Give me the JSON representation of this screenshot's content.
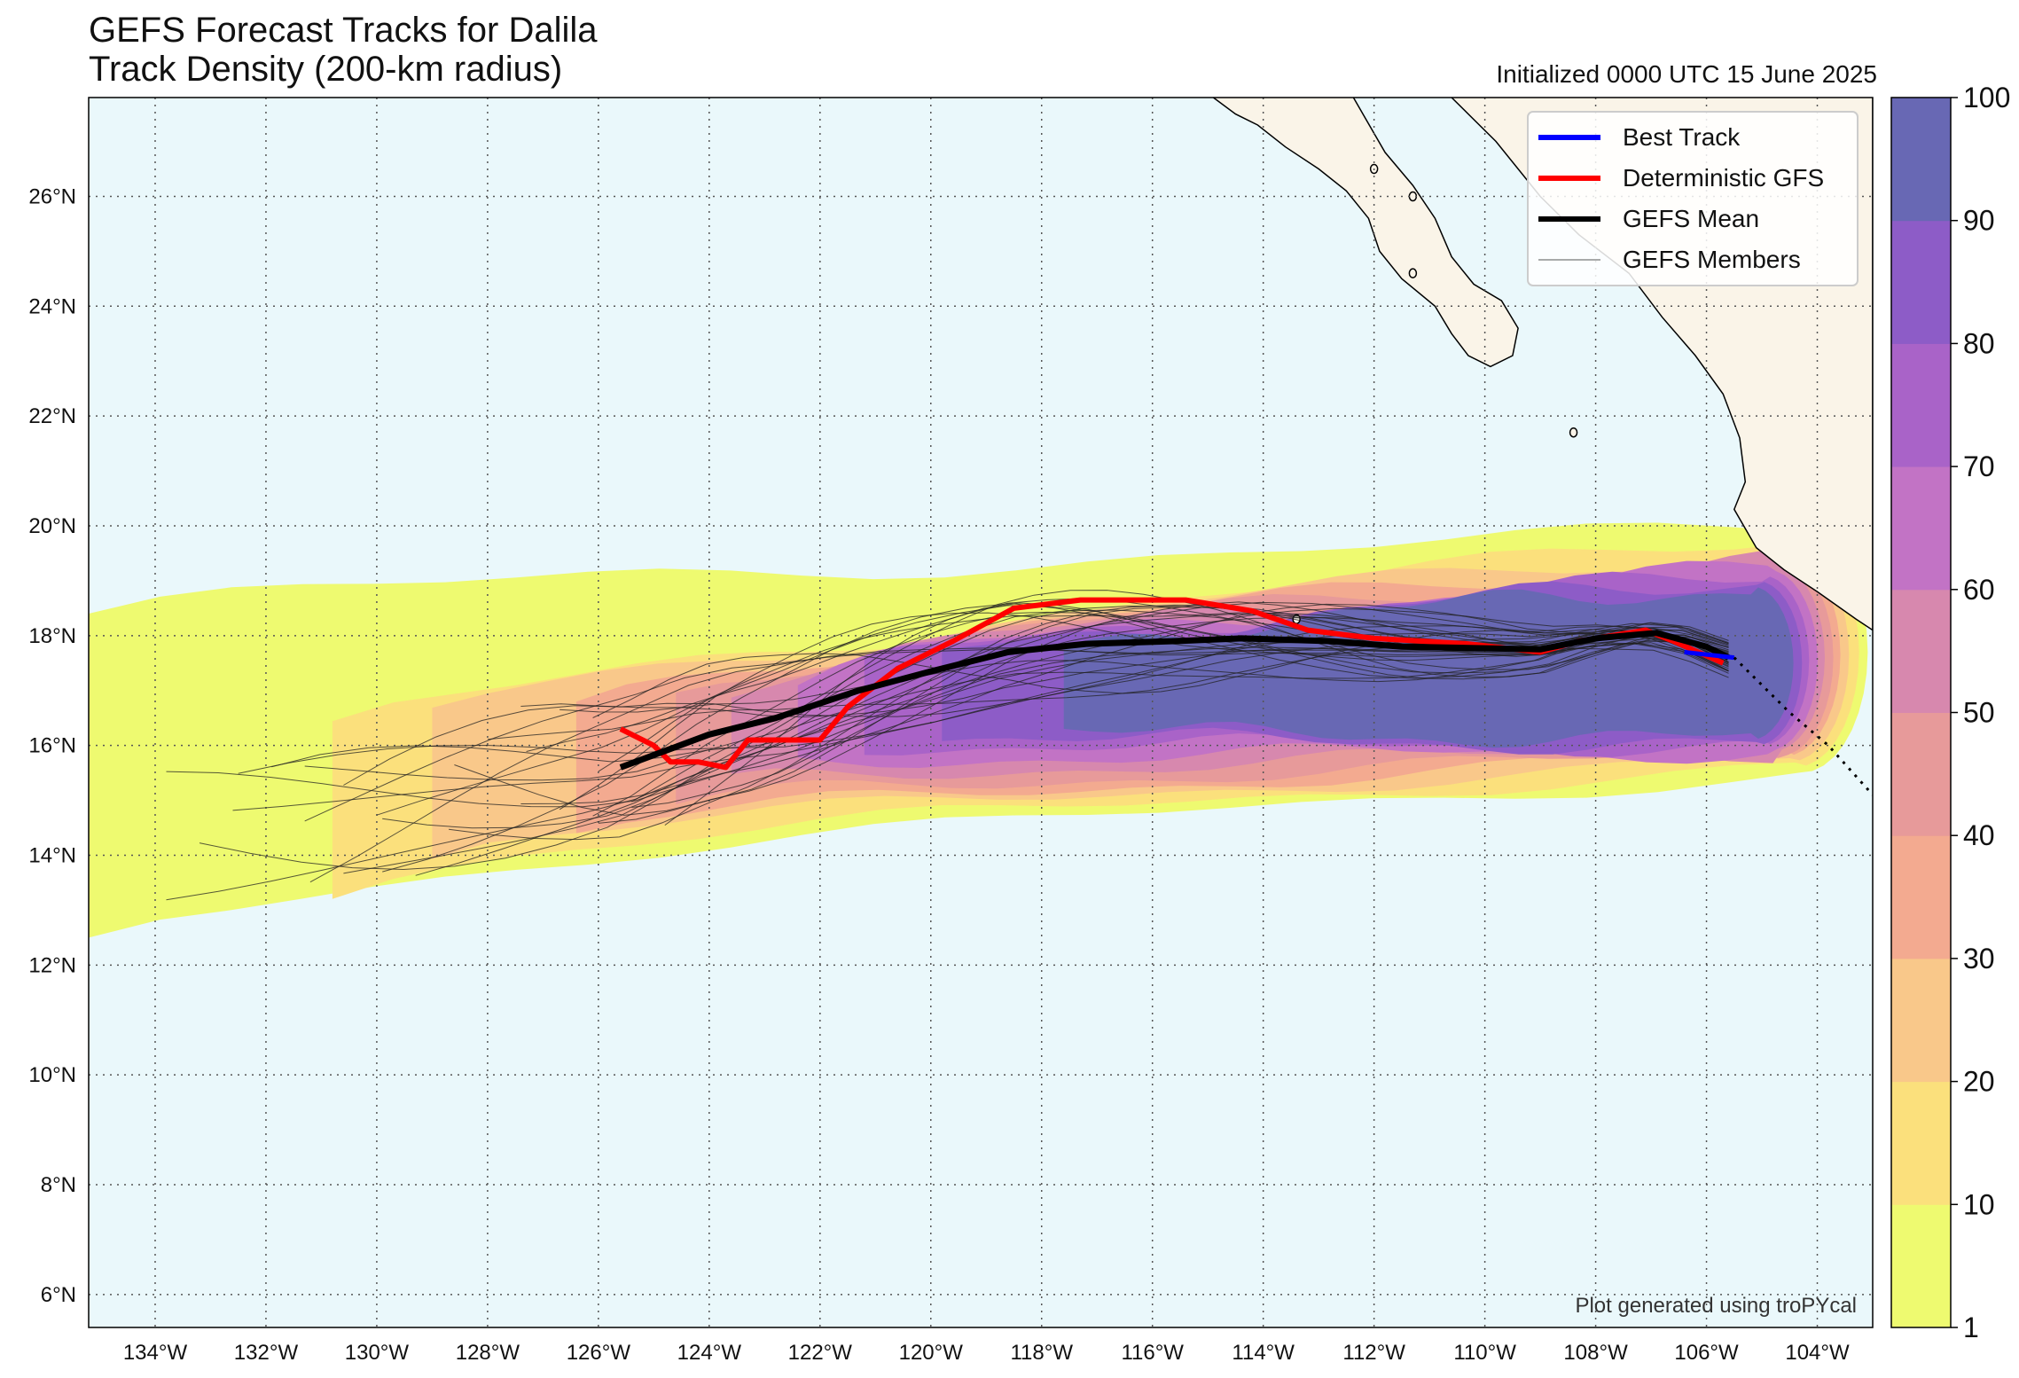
{
  "title_line1": "GEFS Forecast Tracks for Dalila",
  "title_line2": "Track Density (200-km radius)",
  "initialized": "Initialized 0000 UTC 15 June 2025",
  "credit": "Plot generated using troPYcal",
  "legend": [
    {
      "label": "Best Track",
      "color": "#0000ff"
    },
    {
      "label": "Deterministic GFS",
      "color": "#ff0000"
    },
    {
      "label": "GEFS Mean",
      "color": "#000000"
    },
    {
      "label": "GEFS Members",
      "color": "#555555"
    }
  ],
  "colors": {
    "ocean": "#eaf8fb",
    "land": "#faf4e8",
    "grid": "#555555"
  },
  "map_extent": {
    "lon_min": -135.2,
    "lon_max": -103.0,
    "lat_min": 5.4,
    "lat_max": 27.8
  },
  "lon_ticks": [
    {
      "lon": -134,
      "label": "134°W"
    },
    {
      "lon": -132,
      "label": "132°W"
    },
    {
      "lon": -130,
      "label": "130°W"
    },
    {
      "lon": -128,
      "label": "128°W"
    },
    {
      "lon": -126,
      "label": "126°W"
    },
    {
      "lon": -124,
      "label": "124°W"
    },
    {
      "lon": -122,
      "label": "122°W"
    },
    {
      "lon": -120,
      "label": "120°W"
    },
    {
      "lon": -118,
      "label": "118°W"
    },
    {
      "lon": -116,
      "label": "116°W"
    },
    {
      "lon": -114,
      "label": "114°W"
    },
    {
      "lon": -112,
      "label": "112°W"
    },
    {
      "lon": -110,
      "label": "110°W"
    },
    {
      "lon": -108,
      "label": "108°W"
    },
    {
      "lon": -106,
      "label": "106°W"
    },
    {
      "lon": -104,
      "label": "104°W"
    }
  ],
  "lat_ticks": [
    {
      "lat": 26,
      "label": "26°N"
    },
    {
      "lat": 24,
      "label": "24°N"
    },
    {
      "lat": 22,
      "label": "22°N"
    },
    {
      "lat": 20,
      "label": "20°N"
    },
    {
      "lat": 18,
      "label": "18°N"
    },
    {
      "lat": 16,
      "label": "16°N"
    },
    {
      "lat": 14,
      "label": "14°N"
    },
    {
      "lat": 12,
      "label": "12°N"
    },
    {
      "lat": 10,
      "label": "10°N"
    },
    {
      "lat": 8,
      "label": "8°N"
    },
    {
      "lat": 6,
      "label": "6°N"
    }
  ],
  "colorbar": {
    "levels": [
      1,
      10,
      20,
      30,
      40,
      50,
      60,
      70,
      80,
      90,
      100
    ],
    "tick_labels": [
      "1",
      "10",
      "20",
      "30",
      "40",
      "50",
      "60",
      "70",
      "80",
      "90",
      "100"
    ],
    "colors": [
      "#eefa70",
      "#fbe07c",
      "#f9c88a",
      "#f3aa90",
      "#e79a9a",
      "#d788ae",
      "#c273c5",
      "#a963c8",
      "#8d5cc7",
      "#6868b4"
    ]
  },
  "density_contours": [
    {
      "level": 1,
      "lon_min": -135.2,
      "lon_max": -104.3,
      "lat_top_west": 18.4,
      "lat_bot_west": 12.5,
      "lat_top_east": 19.9,
      "lat_bot_east": 15.5
    },
    {
      "level": 10,
      "lon_min": -130.8,
      "lon_max": -104.4,
      "lat_top_west": 16.2,
      "lat_bot_west": 13.4,
      "lat_top_east": 19.8,
      "lat_bot_east": 15.6
    },
    {
      "level": 20,
      "lon_min": -129.0,
      "lon_max": -104.5,
      "lat_top_west": 16.6,
      "lat_bot_west": 14.0,
      "lat_top_east": 19.6,
      "lat_bot_east": 15.7
    },
    {
      "level": 30,
      "lon_min": -126.4,
      "lon_max": -104.6,
      "lat_top_west": 16.8,
      "lat_bot_west": 14.4,
      "lat_top_east": 19.5,
      "lat_bot_east": 15.8
    },
    {
      "level": 40,
      "lon_min": -124.6,
      "lon_max": -104.7,
      "lat_top_west": 17.0,
      "lat_bot_west": 14.9,
      "lat_top_east": 19.4,
      "lat_bot_east": 15.8
    },
    {
      "level": 50,
      "lon_min": -123.6,
      "lon_max": -104.8,
      "lat_top_west": 17.1,
      "lat_bot_west": 15.3,
      "lat_top_east": 19.3,
      "lat_bot_east": 15.9
    },
    {
      "level": 60,
      "lon_min": -122.4,
      "lon_max": -104.9,
      "lat_top_west": 17.2,
      "lat_bot_west": 15.7,
      "lat_top_east": 19.2,
      "lat_bot_east": 15.9
    },
    {
      "level": 70,
      "lon_min": -121.2,
      "lon_max": -105.0,
      "lat_top_west": 17.4,
      "lat_bot_west": 16.0,
      "lat_top_east": 19.1,
      "lat_bot_east": 16.0
    },
    {
      "level": 80,
      "lon_min": -119.8,
      "lon_max": -105.1,
      "lat_top_west": 17.6,
      "lat_bot_west": 16.2,
      "lat_top_east": 19.0,
      "lat_bot_east": 16.0
    },
    {
      "level": 90,
      "lon_min": -117.6,
      "lon_max": -105.2,
      "lat_top_west": 17.8,
      "lat_bot_west": 16.3,
      "lat_top_east": 18.9,
      "lat_bot_east": 16.1
    }
  ],
  "tracks": {
    "best_track": [
      [
        -106.4,
        17.7
      ],
      [
        -105.5,
        17.6
      ]
    ],
    "best_track_forecast": [
      [
        -105.5,
        17.6
      ],
      [
        -104.5,
        16.6
      ],
      [
        -103.8,
        16.0
      ],
      [
        -103.0,
        15.1
      ]
    ],
    "deterministic_gfs": [
      [
        -125.6,
        16.3
      ],
      [
        -125.0,
        16.0
      ],
      [
        -124.7,
        15.7
      ],
      [
        -124.2,
        15.7
      ],
      [
        -123.7,
        15.6
      ],
      [
        -123.3,
        16.1
      ],
      [
        -122.8,
        16.1
      ],
      [
        -122.0,
        16.1
      ],
      [
        -121.5,
        16.7
      ],
      [
        -120.6,
        17.4
      ],
      [
        -119.6,
        17.9
      ],
      [
        -118.5,
        18.5
      ],
      [
        -117.3,
        18.65
      ],
      [
        -115.4,
        18.65
      ],
      [
        -114.2,
        18.45
      ],
      [
        -113.2,
        18.1
      ],
      [
        -112.0,
        17.95
      ],
      [
        -110.3,
        17.85
      ],
      [
        -109.0,
        17.7
      ],
      [
        -108.3,
        17.9
      ],
      [
        -107.1,
        18.1
      ],
      [
        -106.6,
        17.9
      ],
      [
        -105.7,
        17.5
      ]
    ],
    "gefs_mean": [
      [
        -125.6,
        15.6
      ],
      [
        -124.0,
        16.2
      ],
      [
        -122.8,
        16.5
      ],
      [
        -121.3,
        17.0
      ],
      [
        -120.0,
        17.35
      ],
      [
        -118.6,
        17.7
      ],
      [
        -117.2,
        17.85
      ],
      [
        -115.6,
        17.9
      ],
      [
        -114.4,
        17.95
      ],
      [
        -112.8,
        17.9
      ],
      [
        -111.5,
        17.8
      ],
      [
        -109.0,
        17.75
      ],
      [
        -108.0,
        17.95
      ],
      [
        -106.9,
        18.05
      ],
      [
        -106.0,
        17.8
      ],
      [
        -105.6,
        17.6
      ]
    ]
  }
}
